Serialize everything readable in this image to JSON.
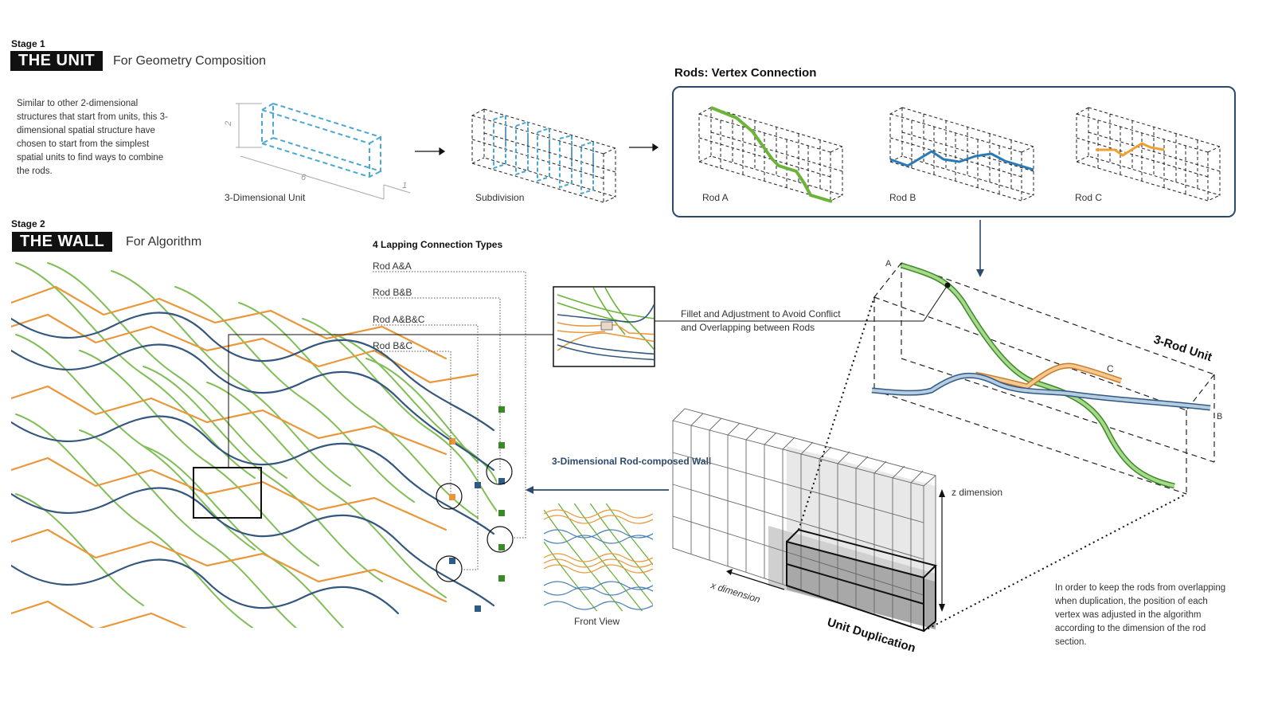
{
  "stage1": {
    "label": "Stage 1",
    "title": "THE UNIT",
    "subtitle": "For Geometry Composition",
    "description": "Similar to other 2-dimensional structures that start from units, this 3-dimensional spatial structure have chosen to start from the simplest spatial units to find ways to combine the rods.",
    "unit_caption": "3-Dimensional Unit",
    "subdivision_caption": "Subdivision",
    "dimensions": {
      "height": "2",
      "length": "6",
      "depth": "1"
    }
  },
  "vertex_connection": {
    "title": "Rods: Vertex Connection",
    "rods": [
      "Rod A",
      "Rod B",
      "Rod C"
    ]
  },
  "stage2": {
    "label": "Stage 2",
    "title": "THE WALL",
    "subtitle": "For Algorithm"
  },
  "lapping": {
    "title": "4 Lapping Connection Types",
    "types": [
      "Rod A&A",
      "Rod B&B",
      "Rod A&B&C",
      "Rod B&C"
    ]
  },
  "fillet_note": "Fillet and Adjustment to Avoid Conflict and Overlapping between Rods",
  "rod_unit": {
    "title": "3-Rod Unit",
    "labels": {
      "a": "A",
      "b": "B",
      "c": "C"
    }
  },
  "wall_label": "3-Dimensional Rod-composed Wall",
  "front_view_caption": "Front View",
  "duplication": {
    "title": "Unit Duplication",
    "x_label": "x dimension",
    "z_label": "z dimension"
  },
  "note": "In order to keep the rods from overlapping when duplication, the position of each vertex was adjusted in the algorithm according to the dimension of the rod section.",
  "colors": {
    "rod_a": "#6aaa3a",
    "rod_b": "#2e5a86",
    "rod_c": "#e8a040",
    "unit_dash": "#4aa8d0",
    "panel_border": "#2b4a6c"
  }
}
